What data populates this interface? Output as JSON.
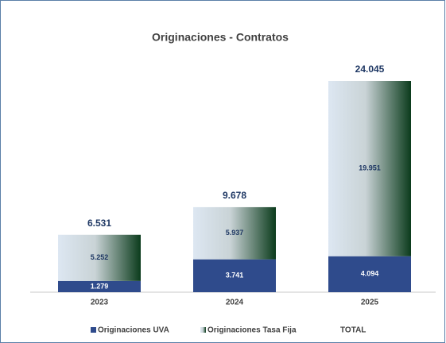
{
  "chart_data": {
    "type": "stacked-bar",
    "title": "Originaciones -  Contratos",
    "categories": [
      "2023",
      "2024",
      "2025"
    ],
    "series": [
      {
        "name": "Originaciones UVA",
        "color": "#2f4b8c",
        "values": [
          1279,
          3741,
          4094
        ],
        "value_labels": [
          "1.279",
          "3.741",
          "4.094"
        ]
      },
      {
        "name": "Originaciones Tasa Fija",
        "color": "#0b3b1c",
        "values": [
          5252,
          5937,
          19951
        ],
        "value_labels": [
          "5.252",
          "5.937",
          "19.951"
        ]
      },
      {
        "name": "TOTAL",
        "color": "#1f3864",
        "values": [
          6531,
          9678,
          24045
        ],
        "value_labels": [
          "6.531",
          "9.678",
          "24.045"
        ]
      }
    ]
  }
}
